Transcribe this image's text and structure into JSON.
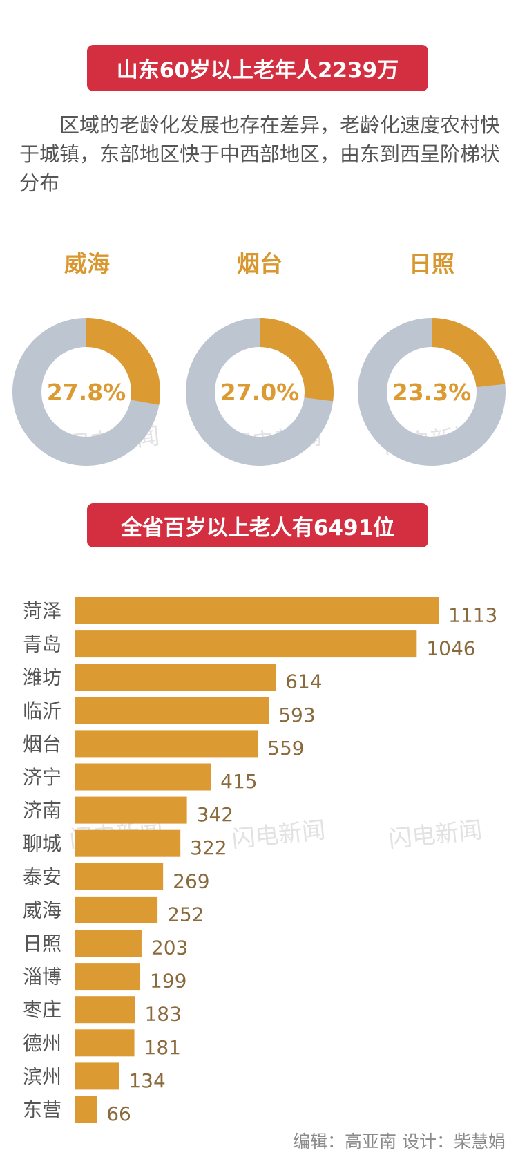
{
  "header": {
    "title": "山东60岁以上老年人2239万"
  },
  "intro": "区域的老龄化发展也存在差异，老龄化速度农村快于城镇，东部地区快于中西部地区，由东到西呈阶梯状分布",
  "section2": {
    "title": "全省百岁以上老人有6491位"
  },
  "watermark": "闪电新闻",
  "footer": "编辑：高亚南  设计：柴慧娟",
  "colors": {
    "accent": "#dc9a33",
    "remainder": "#bcc5d0",
    "banner": "#d42f41"
  },
  "chart_data": [
    {
      "type": "pie",
      "style": "donut",
      "items": [
        {
          "label": "威海",
          "value": 27.8,
          "display": "27.8%"
        },
        {
          "label": "烟台",
          "value": 27.0,
          "display": "27.0%"
        },
        {
          "label": "日照",
          "value": 23.3,
          "display": "23.3%"
        }
      ]
    },
    {
      "type": "bar",
      "orientation": "horizontal",
      "categories": [
        "菏泽",
        "青岛",
        "潍坊",
        "临沂",
        "烟台",
        "济宁",
        "济南",
        "聊城",
        "泰安",
        "威海",
        "日照",
        "淄博",
        "枣庄",
        "德州",
        "滨州",
        "东营"
      ],
      "values": [
        1113,
        1046,
        614,
        593,
        559,
        415,
        342,
        322,
        269,
        252,
        203,
        199,
        183,
        181,
        134,
        66
      ],
      "grid": false
    }
  ]
}
